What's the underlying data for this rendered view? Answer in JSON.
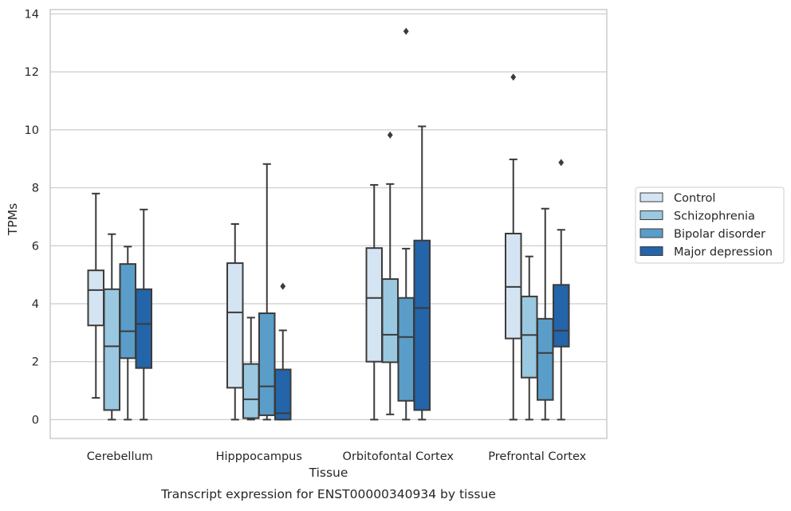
{
  "chart_data": {
    "type": "box",
    "xlabel": "Tissue",
    "ylabel": "TPMs",
    "caption": "Transcript expression for ENST00000340934 by tissue",
    "ylim": [
      -0.65,
      14.15
    ],
    "yticks": [
      0,
      2,
      4,
      6,
      8,
      10,
      12,
      14
    ],
    "grid": "horizontal",
    "legend_position": "right",
    "categories": [
      "Cerebellum",
      "Hipppocampus",
      "Orbitofontal Cortex",
      "Prefrontal Cortex"
    ],
    "series": [
      {
        "name": "Control",
        "color": "#d4e4f2",
        "boxes": [
          {
            "whislo": 0.75,
            "q1": 3.25,
            "med": 4.47,
            "q3": 5.15,
            "whishi": 7.8,
            "fliers": []
          },
          {
            "whislo": 0.0,
            "q1": 1.1,
            "med": 3.7,
            "q3": 5.4,
            "whishi": 6.75,
            "fliers": []
          },
          {
            "whislo": 0.0,
            "q1": 2.0,
            "med": 4.2,
            "q3": 5.92,
            "whishi": 8.1,
            "fliers": []
          },
          {
            "whislo": 0.0,
            "q1": 2.8,
            "med": 4.58,
            "q3": 6.42,
            "whishi": 8.98,
            "fliers": [
              11.82
            ]
          }
        ]
      },
      {
        "name": "Schizophrenia",
        "color": "#9ac8e0",
        "boxes": [
          {
            "whislo": 0.0,
            "q1": 0.33,
            "med": 2.53,
            "q3": 4.5,
            "whishi": 6.4,
            "fliers": []
          },
          {
            "whislo": 0.0,
            "q1": 0.05,
            "med": 0.7,
            "q3": 1.92,
            "whishi": 3.52,
            "fliers": []
          },
          {
            "whislo": 0.18,
            "q1": 1.98,
            "med": 2.93,
            "q3": 4.85,
            "whishi": 8.13,
            "fliers": [
              9.82
            ]
          },
          {
            "whislo": 0.0,
            "q1": 1.45,
            "med": 2.92,
            "q3": 4.25,
            "whishi": 5.63,
            "fliers": []
          }
        ]
      },
      {
        "name": "Bipolar disorder",
        "color": "#5a9dc9",
        "boxes": [
          {
            "whislo": 0.0,
            "q1": 2.12,
            "med": 3.05,
            "q3": 5.37,
            "whishi": 5.97,
            "fliers": []
          },
          {
            "whislo": 0.0,
            "q1": 0.15,
            "med": 1.15,
            "q3": 3.67,
            "whishi": 8.82,
            "fliers": []
          },
          {
            "whislo": 0.0,
            "q1": 0.65,
            "med": 2.85,
            "q3": 4.2,
            "whishi": 5.9,
            "fliers": [
              13.4
            ]
          },
          {
            "whislo": 0.0,
            "q1": 0.68,
            "med": 2.3,
            "q3": 3.48,
            "whishi": 7.28,
            "fliers": []
          }
        ]
      },
      {
        "name": "Major depression",
        "color": "#2464a9",
        "boxes": [
          {
            "whislo": 0.0,
            "q1": 1.78,
            "med": 3.3,
            "q3": 4.5,
            "whishi": 7.25,
            "fliers": []
          },
          {
            "whislo": 0.0,
            "q1": 0.0,
            "med": 0.22,
            "q3": 1.73,
            "whishi": 3.08,
            "fliers": [
              4.6
            ]
          },
          {
            "whislo": 0.0,
            "q1": 0.33,
            "med": 3.85,
            "q3": 6.18,
            "whishi": 10.12,
            "fliers": []
          },
          {
            "whislo": 0.0,
            "q1": 2.52,
            "med": 3.07,
            "q3": 4.65,
            "whishi": 6.55,
            "fliers": [
              8.87
            ]
          }
        ]
      }
    ]
  }
}
